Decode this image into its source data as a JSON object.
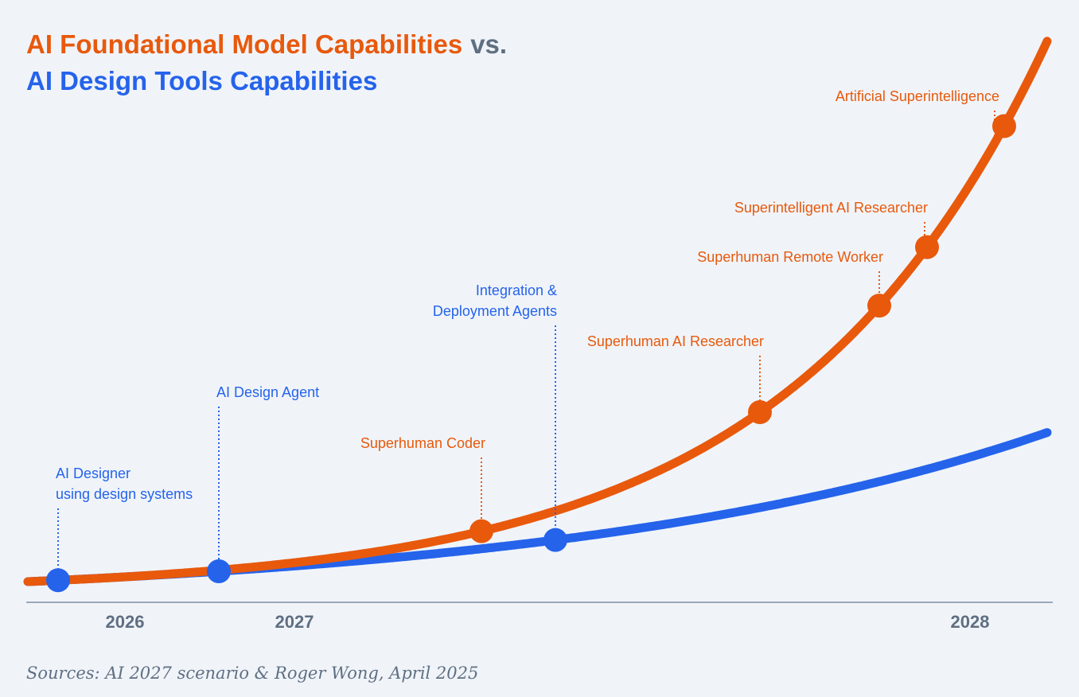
{
  "title": {
    "model": "AI Foundational Model Capabilities",
    "vs": "vs.",
    "design": "AI Design Tools Capabilities"
  },
  "model_milestones": [
    "Superhuman Coder",
    "Superhuman AI Researcher",
    "Superhuman Remote Worker",
    "Superintelligent AI Researcher",
    "Artificial Superintelligence"
  ],
  "design_milestones": [
    [
      "AI Designer",
      "using design systems"
    ],
    [
      "AI Design Agent"
    ],
    [
      "Integration &",
      "Deployment Agents"
    ]
  ],
  "timeline": [
    "2026",
    "2027",
    "2028"
  ],
  "source": "Sources: AI 2027 scenario & Roger Wong, April 2025"
}
